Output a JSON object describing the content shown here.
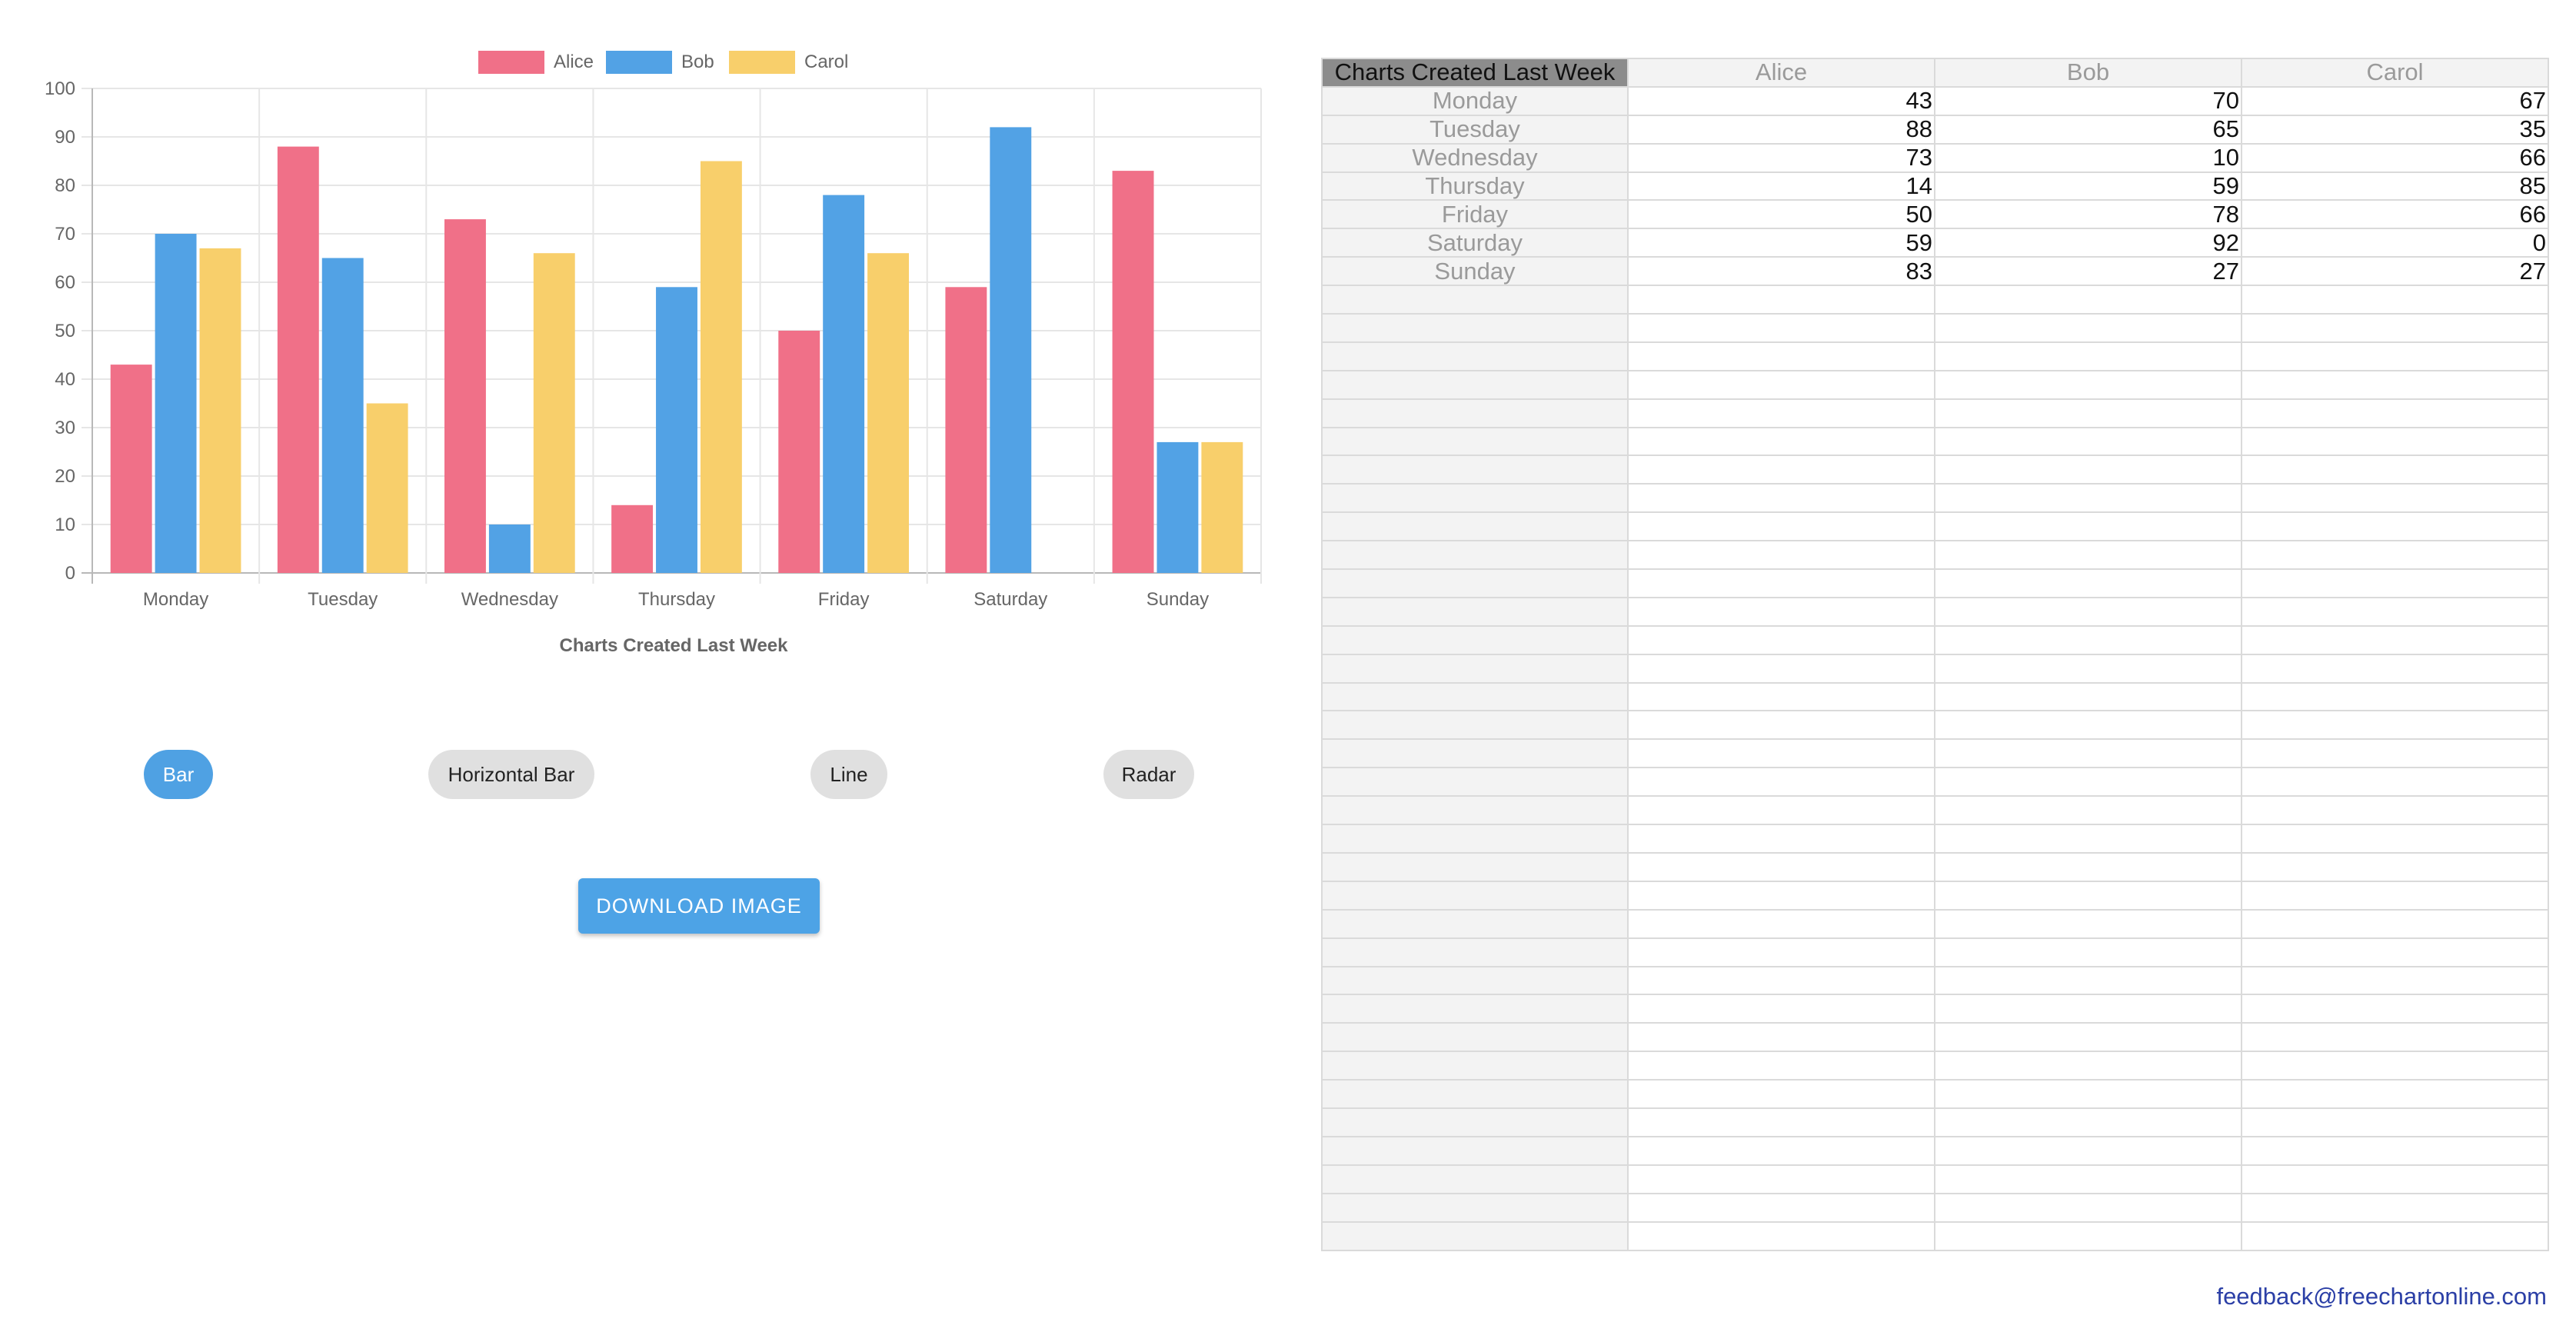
{
  "chart_data": {
    "type": "bar",
    "title": "Charts Created Last Week",
    "categories": [
      "Monday",
      "Tuesday",
      "Wednesday",
      "Thursday",
      "Friday",
      "Saturday",
      "Sunday"
    ],
    "series": [
      {
        "name": "Alice",
        "color": "#f07088",
        "values": [
          43,
          88,
          73,
          14,
          50,
          59,
          83
        ]
      },
      {
        "name": "Bob",
        "color": "#52a2e5",
        "values": [
          70,
          65,
          10,
          59,
          78,
          92,
          27
        ]
      },
      {
        "name": "Carol",
        "color": "#f8cf6b",
        "values": [
          67,
          35,
          66,
          85,
          66,
          0,
          27
        ]
      }
    ],
    "ylim": [
      0,
      100
    ],
    "yticks": [
      "0",
      "10",
      "20",
      "30",
      "40",
      "50",
      "60",
      "70",
      "80",
      "90",
      "100"
    ],
    "grid": true,
    "legend": "top-center"
  },
  "chart_types": {
    "bar": "Bar",
    "horizontal_bar": "Horizontal Bar",
    "line": "Line",
    "radar": "Radar",
    "active": "Bar"
  },
  "download_label": "DOWNLOAD IMAGE",
  "sheet": {
    "corner": "Charts Created Last Week",
    "columns": [
      "Alice",
      "Bob",
      "Carol"
    ],
    "rows": [
      {
        "label": "Monday",
        "values": [
          "43",
          "70",
          "67"
        ]
      },
      {
        "label": "Tuesday",
        "values": [
          "88",
          "65",
          "35"
        ]
      },
      {
        "label": "Wednesday",
        "values": [
          "73",
          "10",
          "66"
        ]
      },
      {
        "label": "Thursday",
        "values": [
          "14",
          "59",
          "85"
        ]
      },
      {
        "label": "Friday",
        "values": [
          "50",
          "78",
          "66"
        ]
      },
      {
        "label": "Saturday",
        "values": [
          "59",
          "92",
          "0"
        ]
      },
      {
        "label": "Sunday",
        "values": [
          "83",
          "27",
          "27"
        ]
      }
    ]
  },
  "feedback_email": "feedback@freechartonline.com"
}
